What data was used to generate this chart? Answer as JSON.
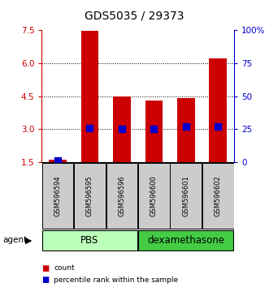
{
  "title": "GDS5035 / 29373",
  "samples": [
    "GSM596594",
    "GSM596595",
    "GSM596596",
    "GSM596600",
    "GSM596601",
    "GSM596602"
  ],
  "counts": [
    1.62,
    7.48,
    4.5,
    4.3,
    4.42,
    6.2
  ],
  "percentiles": [
    1.5,
    25.5,
    25.0,
    25.0,
    27.0,
    27.0
  ],
  "groups": [
    {
      "label": "PBS",
      "start": 0,
      "end": 3,
      "color": "#bbffbb"
    },
    {
      "label": "dexamethasone",
      "start": 3,
      "end": 6,
      "color": "#44cc44"
    }
  ],
  "ylim_left": [
    1.5,
    7.5
  ],
  "yticks_left": [
    1.5,
    3.0,
    4.5,
    6.0,
    7.5
  ],
  "ylim_right": [
    0,
    100
  ],
  "yticks_right": [
    0,
    25,
    50,
    75,
    100
  ],
  "ytick_labels_right": [
    "0",
    "25",
    "50",
    "75",
    "100%"
  ],
  "bar_color": "#cc0000",
  "dot_color": "#0000cc",
  "bar_width": 0.55,
  "dot_size": 28,
  "title_fontsize": 10,
  "tick_fontsize": 7.5,
  "sample_fontsize": 6.0,
  "group_label_fontsize": 8.5,
  "agent_label": "agent",
  "background_color": "#ffffff",
  "grid_color": "#000000"
}
